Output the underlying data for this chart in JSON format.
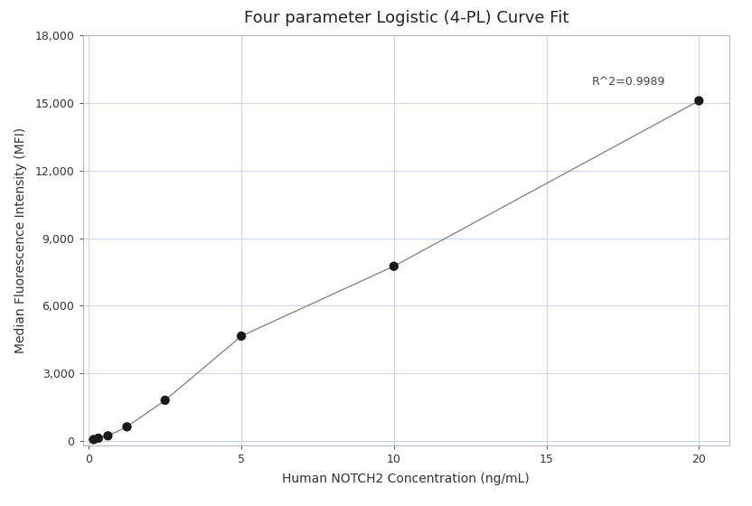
{
  "title": "Four parameter Logistic (4-PL) Curve Fit",
  "xlabel": "Human NOTCH2 Concentration (ng/mL)",
  "ylabel": "Median Fluorescence Intensity (MFI)",
  "x_data": [
    0.156,
    0.313,
    0.625,
    1.25,
    2.5,
    5.0,
    10.0,
    20.0
  ],
  "y_data": [
    55,
    115,
    220,
    620,
    1800,
    4650,
    7750,
    15100
  ],
  "r_squared": "R^2=0.9989",
  "xlim": [
    -0.2,
    21.0
  ],
  "ylim": [
    -200,
    18000
  ],
  "xticks": [
    0,
    5,
    10,
    15,
    20
  ],
  "yticks": [
    0,
    3000,
    6000,
    9000,
    12000,
    15000,
    18000
  ],
  "point_color": "#1a1a1a",
  "line_color": "#888888",
  "grid_color": "#c8d4e8",
  "background_color": "#ffffff",
  "title_fontsize": 13,
  "label_fontsize": 10,
  "tick_fontsize": 9,
  "annotation_fontsize": 9,
  "figsize": [
    8.32,
    5.6
  ],
  "dpi": 100
}
